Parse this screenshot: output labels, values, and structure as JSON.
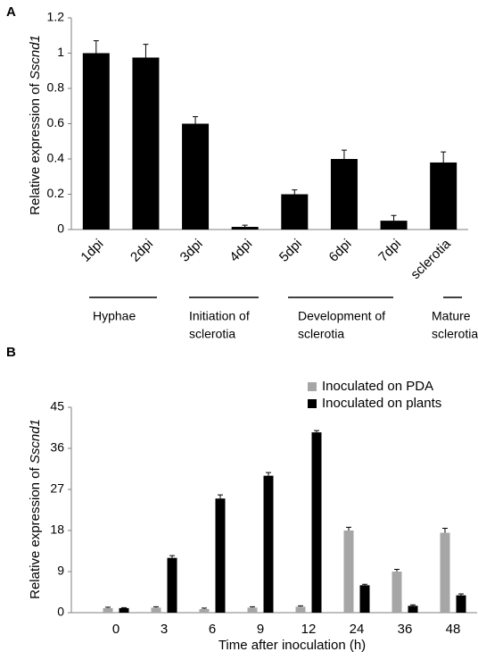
{
  "chart_data": [
    {
      "type": "bar",
      "panel": "A",
      "ylabel": [
        "Relative expression of ",
        "Sscnd1"
      ],
      "categories": [
        "1dpi",
        "2dpi",
        "3dpi",
        "4dpi",
        "5dpi",
        "6dpi",
        "7dpi",
        "sclerotia"
      ],
      "values": [
        1.0,
        0.975,
        0.6,
        0.015,
        0.2,
        0.4,
        0.05,
        0.38
      ],
      "errors": [
        0.07,
        0.075,
        0.04,
        0.01,
        0.025,
        0.05,
        0.03,
        0.06
      ],
      "color": "#000000",
      "ylim": [
        0,
        1.2
      ],
      "yticks": [
        0,
        0.2,
        0.4,
        0.6,
        0.8,
        1,
        1.2
      ],
      "groups": [
        [
          "Hyphae"
        ],
        [
          "Initiation of",
          "sclerotia"
        ],
        [
          "Development of",
          "sclerotia"
        ],
        [
          "Mature",
          "sclerotia"
        ]
      ]
    },
    {
      "type": "grouped-bar",
      "panel": "B",
      "ylabel": [
        "Relative expression of ",
        "Sscnd1"
      ],
      "xlabel": "Time after inoculation (h)",
      "categories": [
        "0",
        "3",
        "6",
        "9",
        "12",
        "24",
        "36",
        "48"
      ],
      "series": [
        {
          "name": "Inoculated on PDA",
          "color": "#a6a6a6",
          "values": [
            1,
            1.1,
            0.8,
            1.1,
            1.3,
            18,
            9,
            17.5
          ],
          "errors": [
            0.2,
            0.2,
            0.2,
            0.2,
            0.2,
            0.7,
            0.5,
            1.0
          ]
        },
        {
          "name": "Inoculated on plants",
          "color": "#000000",
          "values": [
            1,
            12,
            25,
            30,
            39.5,
            6,
            1.5,
            3.8
          ],
          "errors": [
            0.1,
            0.5,
            0.8,
            0.7,
            0.4,
            0.2,
            0.2,
            0.3
          ]
        }
      ],
      "ylim": [
        0,
        45
      ],
      "yticks": [
        0,
        9,
        18,
        27,
        36,
        45
      ],
      "legend": "top-right"
    }
  ]
}
